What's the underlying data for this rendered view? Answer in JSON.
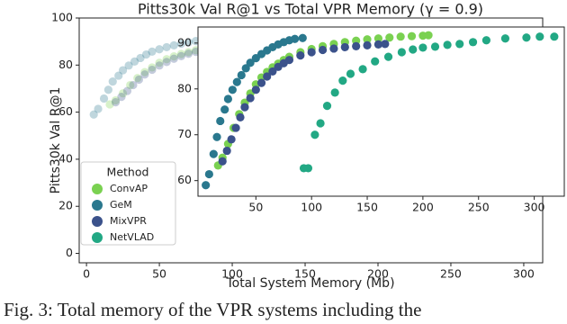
{
  "chart_data": {
    "type": "scatter",
    "title": "Pitts30k Val R@1 vs Total VPR Memory (γ = 0.9)",
    "x_label": "Total System Memory (Mb)",
    "y_label": "Pitts30k Val R@1",
    "xlim": [
      -5,
      313
    ],
    "ylim": [
      -4,
      100
    ],
    "xticks": [
      0,
      50,
      100,
      150,
      200,
      250,
      300
    ],
    "yticks": [
      0,
      20,
      40,
      60,
      80,
      100
    ],
    "legend_title": "Method",
    "legend": "lower left",
    "series": [
      {
        "name": "ConvAP",
        "color": "#7ad151",
        "x": [
          16,
          20,
          25,
          30,
          35,
          40,
          45,
          50,
          55,
          60,
          65,
          70,
          75,
          80,
          90,
          100,
          110,
          120,
          130,
          140,
          150,
          160,
          170,
          180,
          190,
          200,
          205
        ],
        "values": [
          63.3,
          65,
          68,
          71.5,
          74.5,
          77,
          79,
          81,
          82.5,
          83.7,
          84.7,
          85.5,
          86.3,
          87,
          88,
          88.7,
          89.3,
          89.8,
          90.2,
          90.5,
          90.8,
          91,
          91.2,
          91.4,
          91.5,
          91.6,
          91.7
        ]
      },
      {
        "name": "GeM",
        "color": "#2a788e",
        "x": [
          5,
          8,
          12,
          15,
          18,
          22,
          25,
          29,
          33,
          37,
          41,
          45,
          50,
          55,
          60,
          65,
          70,
          75,
          80,
          85,
          92
        ],
        "values": [
          59,
          61.4,
          65.8,
          69.5,
          73,
          75.5,
          77.8,
          79.8,
          81.5,
          83,
          84.5,
          85.7,
          86.7,
          87.6,
          88.4,
          89.1,
          89.7,
          90.2,
          90.6,
          90.9,
          91.1
        ]
      },
      {
        "name": "MixVPR",
        "color": "#3b528b",
        "x": [
          20,
          24,
          28,
          32,
          36,
          40,
          45,
          50,
          55,
          60,
          65,
          70,
          75,
          80,
          90,
          100,
          110,
          120,
          130,
          140,
          150,
          160,
          166
        ],
        "values": [
          64.2,
          66.5,
          69,
          71.5,
          73.8,
          76,
          78,
          79.8,
          81.3,
          82.7,
          83.8,
          84.8,
          85.6,
          86.3,
          87.3,
          88,
          88.5,
          88.8,
          89.1,
          89.3,
          89.5,
          89.7,
          89.8
        ]
      },
      {
        "name": "NetVLAD",
        "color": "#22a884",
        "x": [
          93,
          97,
          103,
          108,
          114,
          121,
          128,
          135,
          146,
          157,
          169,
          181,
          191,
          200,
          211,
          222,
          233,
          245,
          257,
          274,
          293,
          305,
          318
        ],
        "values": [
          62.7,
          62.7,
          70,
          72.5,
          76.3,
          79.2,
          81.8,
          83.3,
          84.3,
          86,
          87,
          88,
          88.6,
          89,
          89.2,
          89.6,
          89.8,
          90.2,
          90.6,
          91,
          91.2,
          91.4,
          91.4
        ]
      }
    ],
    "inset": {
      "xlim": [
        -2,
        327
      ],
      "ylim": [
        56.6,
        93.5
      ],
      "xticks": [
        50,
        100,
        150,
        200,
        250,
        300
      ],
      "yticks": [
        60,
        70,
        80,
        90
      ]
    }
  },
  "caption": "Fig. 3: Total memory of the VPR systems including the"
}
